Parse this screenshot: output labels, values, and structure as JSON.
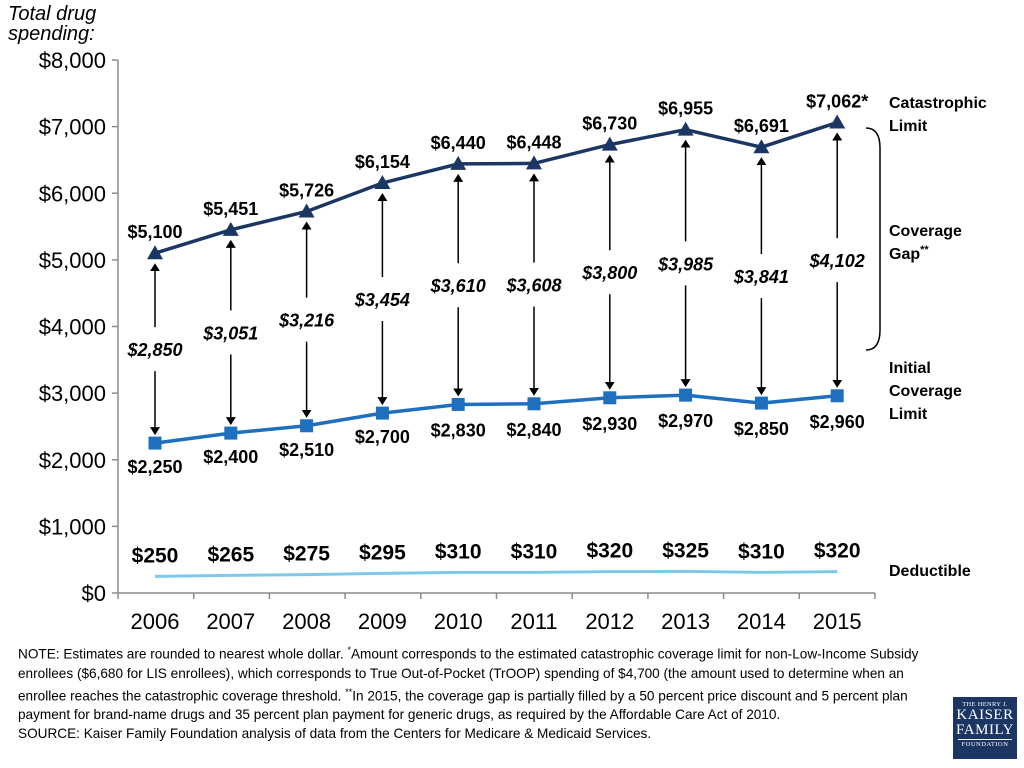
{
  "chart_data": {
    "type": "line",
    "y_title_lines": [
      "Total drug",
      "spending:"
    ],
    "ylim": [
      0,
      8000
    ],
    "y_ticks": [
      0,
      1000,
      2000,
      3000,
      4000,
      5000,
      6000,
      7000,
      8000
    ],
    "y_tick_labels": [
      "$0",
      "$1,000",
      "$2,000",
      "$3,000",
      "$4,000",
      "$5,000",
      "$6,000",
      "$7,000",
      "$8,000"
    ],
    "categories": [
      "2006",
      "2007",
      "2008",
      "2009",
      "2010",
      "2011",
      "2012",
      "2013",
      "2014",
      "2015"
    ],
    "series": [
      {
        "name": "Catastrophic Limit",
        "label_lines": [
          "Catastrophic",
          "Limit"
        ],
        "color": "#1c3664",
        "marker": "triangle",
        "values": [
          5100,
          5451,
          5726,
          6154,
          6440,
          6448,
          6730,
          6955,
          6691,
          7062
        ],
        "value_labels": [
          "$5,100",
          "$5,451",
          "$5,726",
          "$6,154",
          "$6,440",
          "$6,448",
          "$6,730",
          "$6,955",
          "$6,691",
          "$7,062*"
        ]
      },
      {
        "name": "Initial Coverage Limit",
        "label_lines": [
          "Initial",
          "Coverage",
          "Limit"
        ],
        "color": "#1f6fbf",
        "marker": "square",
        "values": [
          2250,
          2400,
          2510,
          2700,
          2830,
          2840,
          2930,
          2970,
          2850,
          2960
        ],
        "value_labels": [
          "$2,250",
          "$2,400",
          "$2,510",
          "$2,700",
          "$2,830",
          "$2,840",
          "$2,930",
          "$2,970",
          "$2,850",
          "$2,960"
        ]
      },
      {
        "name": "Deductible",
        "label_lines": [
          "Deductible"
        ],
        "color": "#7ec8ec",
        "marker": "none",
        "values": [
          250,
          265,
          275,
          295,
          310,
          310,
          320,
          325,
          310,
          320
        ],
        "value_labels": [
          "$250",
          "$265",
          "$275",
          "$295",
          "$310",
          "$310",
          "$320",
          "$325",
          "$310",
          "$320"
        ]
      }
    ],
    "coverage_gap": {
      "label": "Coverage",
      "label_line2": "Gap",
      "label_sup": "**",
      "values": [
        2850,
        3051,
        3216,
        3454,
        3610,
        3608,
        3800,
        3985,
        3841,
        4102
      ],
      "value_labels": [
        "$2,850",
        "$3,051",
        "$3,216",
        "$3,454",
        "$3,610",
        "$3,608",
        "$3,800",
        "$3,985",
        "$3,841",
        "$4,102"
      ]
    }
  },
  "notes": {
    "note_a": "NOTE:  Estimates are rounded to nearest whole dollar. ",
    "note_star": "*",
    "note_b": "Amount corresponds to the estimated catastrophic coverage limit for non-Low-Income Subsidy enrollees ($6,680 for LIS enrollees), which corresponds to True Out-of-Pocket (TrOOP) spending of $4,700 (the amount used to determine when an enrollee reaches the catastrophic coverage threshold.  ",
    "note_dstar": "**",
    "note_c": "In 2015, the coverage gap is partially filled by a 50 percent price discount and 5 percent plan payment for brand-name drugs and 35 percent plan payment for generic drugs, as required by the Affordable Care Act of 2010.",
    "source": "SOURCE: Kaiser Family Foundation analysis of data from the Centers for Medicare & Medicaid Services."
  },
  "logo": {
    "line1": "THE HENRY J.",
    "line2": "KAISER",
    "line3": "FAMILY",
    "line4": "FOUNDATION"
  }
}
